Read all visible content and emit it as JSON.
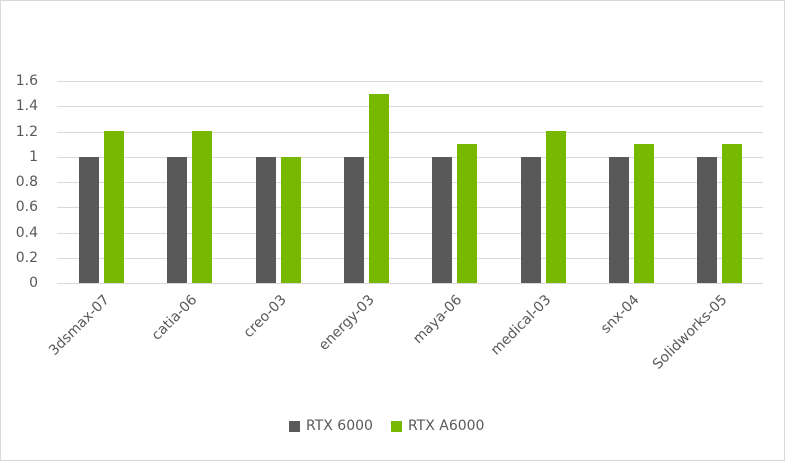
{
  "chart_data": {
    "type": "bar",
    "title": "",
    "xlabel": "",
    "ylabel": "",
    "ylim": [
      0,
      1.6
    ],
    "yticks": [
      "0",
      "0.2",
      "0.4",
      "0.6",
      "0.8",
      "1",
      "1.2",
      "1.4",
      "1.6"
    ],
    "grid": true,
    "legend_position": "bottom",
    "categories": [
      "3dsmax-07",
      "catia-06",
      "creo-03",
      "energy-03",
      "maya-06",
      "medical-03",
      "snx-04",
      "Solidworks-05"
    ],
    "series": [
      {
        "name": "RTX 6000",
        "color": "#595959",
        "values": [
          1,
          1,
          1,
          1,
          1,
          1,
          1,
          1
        ]
      },
      {
        "name": "RTX A6000",
        "color": "#76b900",
        "values": [
          1.2,
          1.2,
          1.0,
          1.5,
          1.1,
          1.2,
          1.1,
          1.1
        ]
      }
    ]
  },
  "legend": {
    "items": [
      {
        "label": "RTX 6000",
        "color": "#595959"
      },
      {
        "label": "RTX A6000",
        "color": "#76b900"
      }
    ]
  }
}
